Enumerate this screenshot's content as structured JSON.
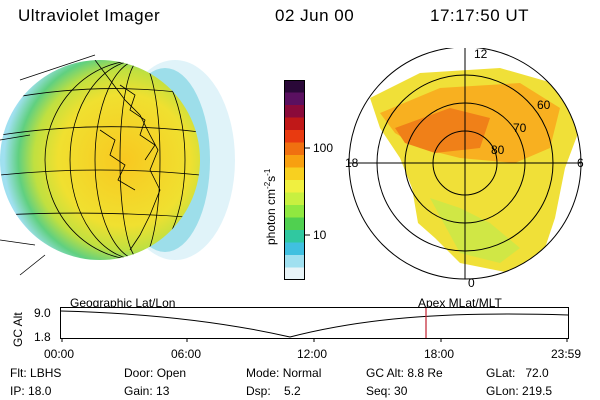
{
  "header": {
    "instrument": "Ultraviolet Imager",
    "date": "02 Jun 00",
    "time": "17:17:50 UT"
  },
  "colorbar": {
    "unit_label": "photon cm",
    "unit_exp1": "-2",
    "unit_mid": "s",
    "unit_exp2": "-1",
    "tick_high": "100",
    "tick_low": "10",
    "colors": [
      "#2a0838",
      "#5a1060",
      "#8a0a3a",
      "#c01818",
      "#e83a10",
      "#f07010",
      "#f8a010",
      "#f8d020",
      "#f0f040",
      "#c8f040",
      "#90e840",
      "#50d050",
      "#30c8a0",
      "#40c0e0",
      "#a0e0f0",
      "#e8f4f8"
    ]
  },
  "polar": {
    "lat_labels": [
      "60",
      "70",
      "80"
    ],
    "mlt_labels": {
      "top": "12",
      "left": "18",
      "right": "6",
      "bottom": "0"
    }
  },
  "timeline": {
    "axis_label": "GC Alt",
    "left_caption": "Geographic Lat/Lon",
    "right_caption": "Apex MLat/MLT",
    "y_high": "9.0",
    "y_low": "1.8",
    "x_ticks": [
      "00:00",
      "06:00",
      "12:00",
      "18:00",
      "23:59"
    ],
    "marker_color": "#c02030"
  },
  "status": {
    "flt_label": "Flt:",
    "flt_value": "LBHS",
    "ip_label": "IP:",
    "ip_value": "18.0",
    "door_label": "Door:",
    "door_value": "Open",
    "gain_label": "Gain:",
    "gain_value": "13",
    "mode_label": "Mode:",
    "mode_value": "Normal",
    "dsp_label": "Dsp:",
    "dsp_value": "5.2",
    "gcalt_label": "GC Alt:",
    "gcalt_value": "8.8 Re",
    "seq_label": "Seq:",
    "seq_value": "30",
    "glat_label": "GLat:",
    "glat_value": "72.0",
    "glon_label": "GLon:",
    "glon_value": "219.5"
  }
}
